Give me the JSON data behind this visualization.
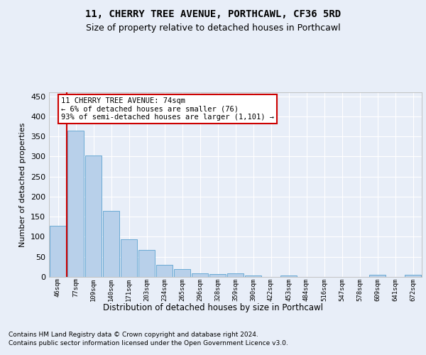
{
  "title": "11, CHERRY TREE AVENUE, PORTHCAWL, CF36 5RD",
  "subtitle": "Size of property relative to detached houses in Porthcawl",
  "xlabel": "Distribution of detached houses by size in Porthcawl",
  "ylabel": "Number of detached properties",
  "bar_values": [
    128,
    365,
    303,
    164,
    94,
    68,
    30,
    19,
    9,
    7,
    9,
    4,
    0,
    4,
    0,
    0,
    0,
    0,
    5,
    0,
    5
  ],
  "bar_labels": [
    "46sqm",
    "77sqm",
    "109sqm",
    "140sqm",
    "171sqm",
    "203sqm",
    "234sqm",
    "265sqm",
    "296sqm",
    "328sqm",
    "359sqm",
    "390sqm",
    "422sqm",
    "453sqm",
    "484sqm",
    "516sqm",
    "547sqm",
    "578sqm",
    "609sqm",
    "641sqm",
    "672sqm"
  ],
  "bar_color": "#b8d0ea",
  "bar_edge_color": "#6aaad4",
  "annotation_box_text": "11 CHERRY TREE AVENUE: 74sqm\n← 6% of detached houses are smaller (76)\n93% of semi-detached houses are larger (1,101) →",
  "vline_x": 0.5,
  "vline_color": "#cc0000",
  "ylim": [
    0,
    460
  ],
  "yticks": [
    0,
    50,
    100,
    150,
    200,
    250,
    300,
    350,
    400,
    450
  ],
  "footer_line1": "Contains HM Land Registry data © Crown copyright and database right 2024.",
  "footer_line2": "Contains public sector information licensed under the Open Government Licence v3.0.",
  "bg_color": "#e8eef8",
  "plot_bg_color": "#e8eef8",
  "grid_color": "#ffffff",
  "title_fontsize": 10,
  "subtitle_fontsize": 9
}
